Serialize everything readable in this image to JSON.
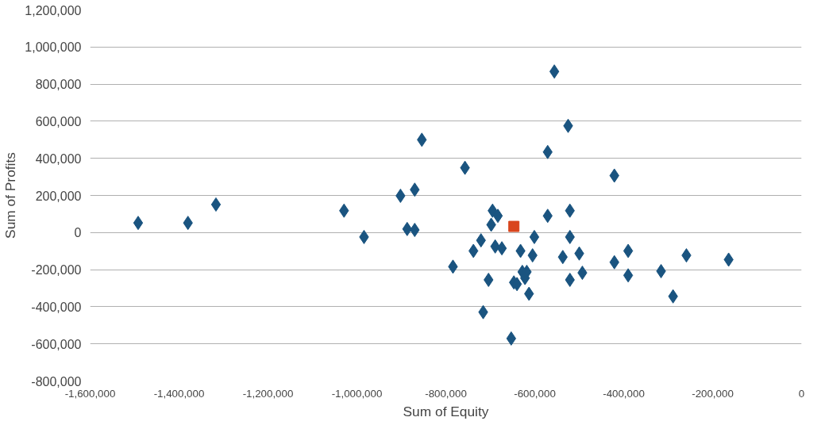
{
  "chart_data": {
    "type": "scatter",
    "xlabel": "Sum of Equity",
    "ylabel": "Sum of Profits",
    "xlim": [
      -1600000,
      0
    ],
    "xticks": [
      {
        "value": -1600000,
        "label": "-1,600,000"
      },
      {
        "value": -1400000,
        "label": "-1,400,000"
      },
      {
        "value": -1200000,
        "label": "-1,200,000"
      },
      {
        "value": -1000000,
        "label": "-1,000,000"
      },
      {
        "value": -800000,
        "label": "-800,000"
      },
      {
        "value": -600000,
        "label": "-600,000"
      },
      {
        "value": -400000,
        "label": "-400,000"
      },
      {
        "value": -200000,
        "label": "-200,000"
      },
      {
        "value": 0,
        "label": "0"
      }
    ],
    "ylim": [
      -800000,
      1200000
    ],
    "yticks": [
      {
        "value": -800000,
        "label": "-800,000"
      },
      {
        "value": -600000,
        "label": "-600,000"
      },
      {
        "value": -400000,
        "label": "-400,000"
      },
      {
        "value": -200000,
        "label": "-200,000"
      },
      {
        "value": 0,
        "label": "0"
      },
      {
        "value": 200000,
        "label": "200,000"
      },
      {
        "value": 400000,
        "label": "400,000"
      },
      {
        "value": 600000,
        "label": "600,000"
      },
      {
        "value": 800000,
        "label": "800,000"
      },
      {
        "value": 1000000,
        "label": "1,000,000"
      },
      {
        "value": 1200000,
        "label": "1,200,000"
      }
    ],
    "grid": "y",
    "series": [
      {
        "color": "#1a5480",
        "marker": "diamond",
        "x": [
          -1492000,
          -1380000,
          -1317000,
          -1029000,
          -984000,
          -902000,
          -870000,
          -854000,
          -887000,
          -870000,
          -784000,
          -757000,
          -738000,
          -721000,
          -704000,
          -698000,
          -695000,
          -683000,
          -689000,
          -674000,
          -716000,
          -653000,
          -647000,
          -640000,
          -632000,
          -628000,
          -618000,
          -622000,
          -613000,
          -605000,
          -601000,
          -571000,
          -571000,
          -556000,
          -537000,
          -525000,
          -521000,
          -521000,
          -521000,
          -500000,
          -493000,
          -421000,
          -421000,
          -390000,
          -390000,
          -316000,
          -289000,
          -259000,
          -164000
        ],
        "values": [
          52000,
          52000,
          151000,
          118000,
          -24000,
          198000,
          231000,
          500000,
          19000,
          14000,
          -184000,
          349000,
          -99000,
          -42000,
          -255000,
          42000,
          118000,
          90000,
          -75000,
          -85000,
          -429000,
          -571000,
          -269000,
          -278000,
          -99000,
          -212000,
          -212000,
          -245000,
          -330000,
          -123000,
          -24000,
          434000,
          90000,
          868000,
          -132000,
          575000,
          118000,
          -24000,
          -255000,
          -113000,
          -217000,
          307000,
          -160000,
          -99000,
          -231000,
          -208000,
          -344000,
          -123000,
          -146000
        ]
      },
      {
        "color": "#d9461e",
        "marker": "square",
        "x": [
          -647000
        ],
        "values": [
          33000
        ]
      }
    ]
  }
}
